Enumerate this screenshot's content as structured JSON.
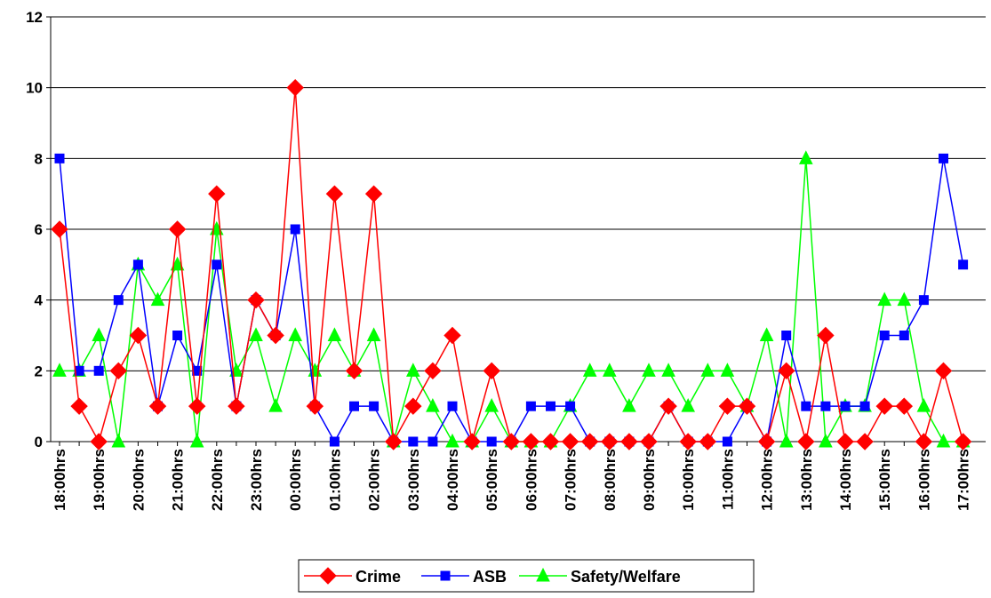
{
  "chart_data": {
    "type": "line",
    "title": "",
    "xlabel": "",
    "ylabel": "",
    "ylim": [
      0,
      12
    ],
    "yticks": [
      0,
      2,
      4,
      6,
      8,
      10,
      12
    ],
    "grid": "horizontal",
    "legend_position": "bottom-center",
    "x_tick_labels": [
      "18:00hrs",
      "19:00hrs",
      "20:00hrs",
      "21:00hrs",
      "22:00hrs",
      "23:00hrs",
      "00:00hrs",
      "01:00hrs",
      "02:00hrs",
      "03:00hrs",
      "04:00hrs",
      "05:00hrs",
      "06:00hrs",
      "07:00hrs",
      "08:00hrs",
      "09:00hrs",
      "10:00hrs",
      "11:00hrs",
      "12:00hrs",
      "13:00hrs",
      "14:00hrs",
      "15:00hrs",
      "16:00hrs",
      "17:00hrs"
    ],
    "series": [
      {
        "name": "Crime",
        "color": "#ff0000",
        "marker": "diamond",
        "values": [
          6,
          1,
          0,
          2,
          3,
          1,
          6,
          1,
          7,
          1,
          4,
          3,
          10,
          1,
          7,
          2,
          7,
          0,
          1,
          2,
          3,
          0,
          2,
          0,
          0,
          0,
          0,
          0,
          0,
          0,
          0,
          1,
          0,
          0,
          1,
          1,
          0,
          2,
          0,
          3,
          0,
          0,
          1,
          1,
          0,
          2,
          0
        ]
      },
      {
        "name": "ASB",
        "color": "#0000ff",
        "marker": "square",
        "values": [
          8,
          2,
          2,
          4,
          5,
          1,
          3,
          2,
          5,
          1,
          4,
          3,
          6,
          1,
          0,
          1,
          1,
          0,
          0,
          0,
          1,
          0,
          0,
          0,
          1,
          1,
          1,
          0,
          0,
          0,
          0,
          1,
          0,
          0,
          0,
          1,
          0,
          3,
          1,
          1,
          1,
          1,
          3,
          3,
          4,
          8,
          5
        ]
      },
      {
        "name": "Safety/Welfare",
        "color": "#00ff00",
        "marker": "triangle",
        "values": [
          2,
          2,
          3,
          0,
          5,
          4,
          5,
          0,
          6,
          2,
          3,
          1,
          3,
          2,
          3,
          2,
          3,
          0,
          2,
          1,
          0,
          0,
          1,
          0,
          0,
          0,
          1,
          2,
          2,
          1,
          2,
          2,
          1,
          2,
          2,
          1,
          3,
          0,
          8,
          0,
          1,
          1,
          4,
          4,
          1,
          0,
          0
        ]
      }
    ]
  }
}
